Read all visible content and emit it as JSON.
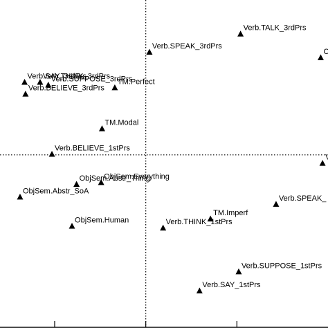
{
  "chart_data": {
    "type": "scatter",
    "title": "",
    "xlabel": "",
    "ylabel": "",
    "xlim": [
      -1.6,
      2.0
    ],
    "ylim": [
      -1.9,
      1.7
    ],
    "reference_lines": {
      "x": 0,
      "y": 0
    },
    "x_ticks": [
      -1,
      0,
      1
    ],
    "marker": "filled-triangle",
    "color": "#000000",
    "points": [
      {
        "label": "Verb.TALK_3rdPrs",
        "x": 1.04,
        "y": 1.33
      },
      {
        "label": "Verb.SPEAK_3rdPrs",
        "x": 0.04,
        "y": 1.13
      },
      {
        "label": "O",
        "x": 1.92,
        "y": 1.07
      },
      {
        "label": "Verb.SAY_3rdPrs",
        "x": -1.33,
        "y": 0.8
      },
      {
        "label": "Verb.THINK_3rdPrs",
        "x": -1.16,
        "y": 0.8
      },
      {
        "label": "Verb.SUPPOSE_3rdPrs",
        "x": -1.07,
        "y": 0.77
      },
      {
        "label": "TM.Perfect",
        "x": -0.34,
        "y": 0.74
      },
      {
        "label": "Verb.BELIEVE_3rdPrs",
        "x": -1.32,
        "y": 0.67
      },
      {
        "label": "TM.Modal",
        "x": -0.48,
        "y": 0.29
      },
      {
        "label": "Verb.BELIEVE_1stPrs",
        "x": -1.03,
        "y": 0.01
      },
      {
        "label": "V",
        "x": 1.94,
        "y": -0.09
      },
      {
        "label": "ObjSem.Abstr_Thing",
        "x": -0.76,
        "y": -0.32
      },
      {
        "label": "ObjSem.Everything",
        "x": -0.49,
        "y": -0.3
      },
      {
        "label": "ObjSem.Abstr_SoA",
        "x": -1.38,
        "y": -0.46
      },
      {
        "label": "Verb.SPEAK_",
        "x": 1.43,
        "y": -0.54
      },
      {
        "label": "TM.Imperf",
        "x": 0.71,
        "y": -0.7
      },
      {
        "label": "Verb.THINK_1stPrs",
        "x": 0.19,
        "y": -0.8
      },
      {
        "label": "ObjSem.Human",
        "x": -0.81,
        "y": -0.78
      },
      {
        "label": "Verb.SUPPOSE_1stPrs",
        "x": 1.02,
        "y": -1.28
      },
      {
        "label": "Verb.SAY_1stPrs",
        "x": 0.59,
        "y": -1.49
      }
    ]
  }
}
